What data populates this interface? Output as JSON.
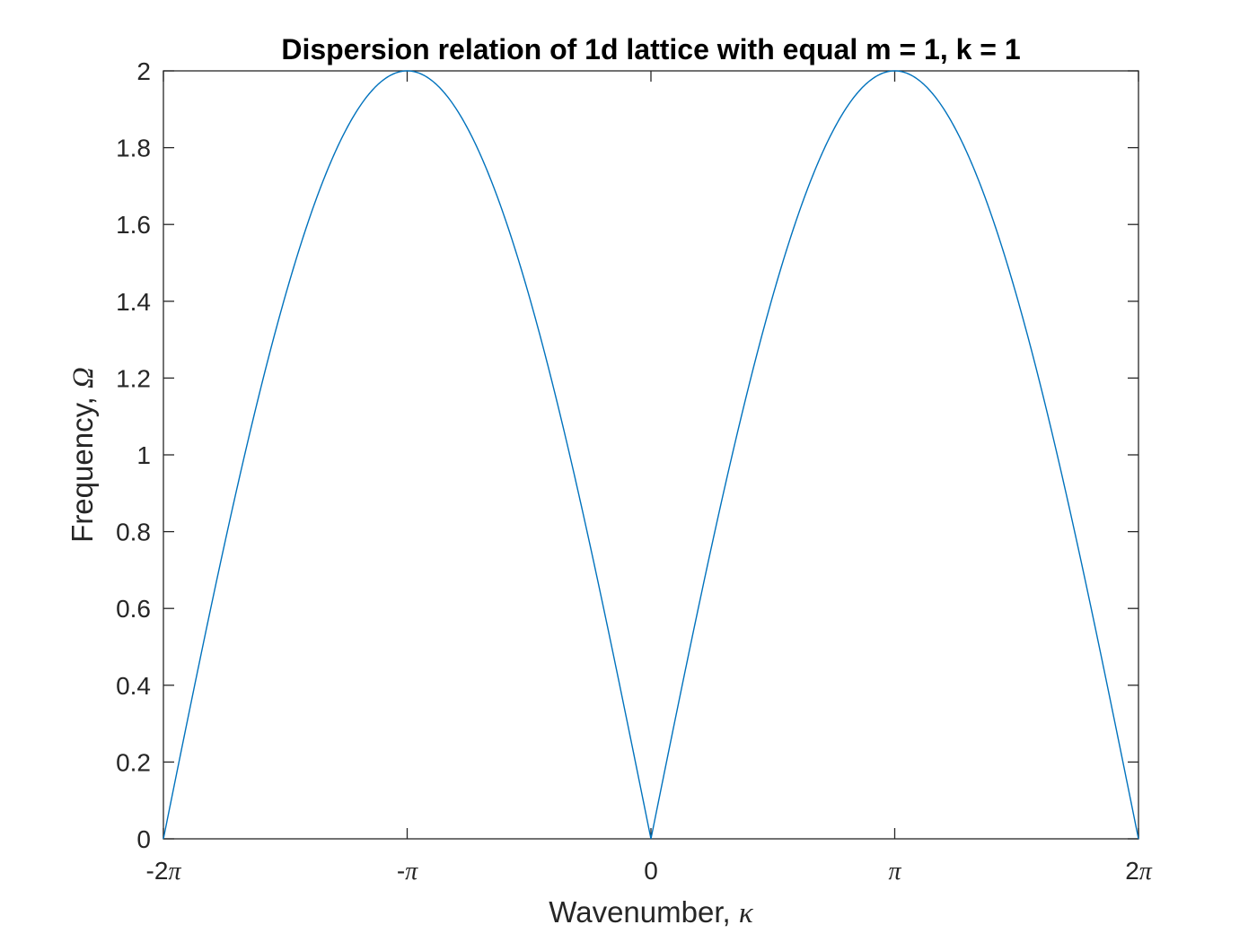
{
  "chart_data": {
    "type": "line",
    "title": "Dispersion relation of 1d lattice with equal m = 1, k = 1",
    "xlabel": "Wavenumber, κ",
    "xlabel_text": "Wavenumber, ",
    "xlabel_symbol": "κ",
    "ylabel": "Frequency, Ω",
    "ylabel_text": "Frequency, ",
    "ylabel_symbol": "Ω",
    "xlim": [
      -6.283185,
      6.283185
    ],
    "ylim": [
      0,
      2
    ],
    "xticks": [
      {
        "value": -6.283185,
        "label": "-2π"
      },
      {
        "value": -3.141593,
        "label": "-π"
      },
      {
        "value": 0,
        "label": "0"
      },
      {
        "value": 3.141593,
        "label": "π"
      },
      {
        "value": 6.283185,
        "label": "2π"
      }
    ],
    "yticks": [
      {
        "value": 0,
        "label": "0"
      },
      {
        "value": 0.2,
        "label": "0.2"
      },
      {
        "value": 0.4,
        "label": "0.4"
      },
      {
        "value": 0.6,
        "label": "0.6"
      },
      {
        "value": 0.8,
        "label": "0.8"
      },
      {
        "value": 1.0,
        "label": "1"
      },
      {
        "value": 1.2,
        "label": "1.2"
      },
      {
        "value": 1.4,
        "label": "1.4"
      },
      {
        "value": 1.6,
        "label": "1.6"
      },
      {
        "value": 1.8,
        "label": "1.8"
      },
      {
        "value": 2.0,
        "label": "2"
      }
    ],
    "grid": false,
    "series": [
      {
        "color": "#0072bd",
        "x": [
          -6.283185,
          -5.969026,
          -5.654867,
          -5.340708,
          -5.026548,
          -4.712389,
          -4.39823,
          -4.08407,
          -3.769911,
          -3.455752,
          -3.141593,
          -2.827433,
          -2.513274,
          -2.199115,
          -1.884956,
          -1.570796,
          -1.256637,
          -0.942478,
          -0.628319,
          -0.314159,
          0.0,
          0.314159,
          0.628319,
          0.942478,
          1.256637,
          1.570796,
          1.884956,
          2.199115,
          2.513274,
          2.827433,
          3.141593,
          3.455752,
          3.769911,
          4.08407,
          4.39823,
          4.712389,
          5.026548,
          5.340708,
          5.654867,
          5.969026,
          6.283185
        ],
        "y": [
          0.0,
          0.313,
          0.618,
          0.908,
          1.176,
          1.414,
          1.618,
          1.782,
          1.902,
          1.975,
          2.0,
          1.975,
          1.902,
          1.782,
          1.618,
          1.414,
          1.176,
          0.908,
          0.618,
          0.313,
          0.0,
          0.313,
          0.618,
          0.908,
          1.176,
          1.414,
          1.618,
          1.782,
          1.902,
          1.975,
          2.0,
          1.975,
          1.902,
          1.782,
          1.618,
          1.414,
          1.176,
          0.908,
          0.618,
          0.313,
          0.0
        ]
      }
    ]
  }
}
